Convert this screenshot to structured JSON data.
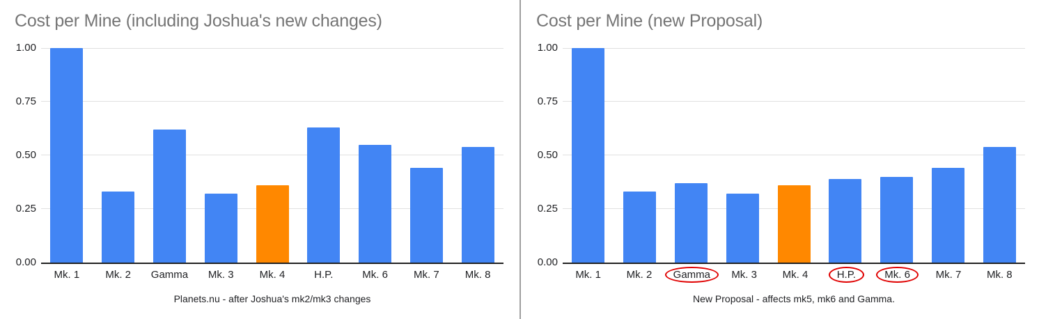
{
  "page": {
    "background": "#ffffff",
    "divider_color": "#9e9e9e"
  },
  "chart_data": [
    {
      "type": "bar",
      "title": "Cost per Mine (including Joshua's new changes)",
      "caption": "Planets.nu - after Joshua's mk2/mk3 changes",
      "categories": [
        "Mk. 1",
        "Mk. 2",
        "Gamma",
        "Mk. 3",
        "Mk. 4",
        "H.P.",
        "Mk. 6",
        "Mk. 7",
        "Mk. 8"
      ],
      "values": [
        1.0,
        0.33,
        0.62,
        0.32,
        0.36,
        0.63,
        0.55,
        0.44,
        0.54
      ],
      "highlighted_category": "Mk. 4",
      "circled_categories": [],
      "yticks": [
        "1.00",
        "0.75",
        "0.50",
        "0.25",
        "0.00"
      ],
      "ylim": [
        0,
        1
      ],
      "grid": true,
      "legend": "none",
      "xlabel": "",
      "ylabel": "",
      "colors": {
        "bar": "#4285f4",
        "highlight": "#ff8800",
        "title": "#757575",
        "axis_text": "#202124",
        "gridline": "#e0e0e0",
        "baseline": "#212121",
        "circle": "#e00000"
      }
    },
    {
      "type": "bar",
      "title": "Cost per Mine (new Proposal)",
      "caption": "New Proposal - affects mk5, mk6 and Gamma.",
      "categories": [
        "Mk. 1",
        "Mk. 2",
        "Gamma",
        "Mk. 3",
        "Mk. 4",
        "H.P.",
        "Mk. 6",
        "Mk. 7",
        "Mk. 8"
      ],
      "values": [
        1.0,
        0.33,
        0.37,
        0.32,
        0.36,
        0.39,
        0.4,
        0.44,
        0.54
      ],
      "highlighted_category": "Mk. 4",
      "circled_categories": [
        "Gamma",
        "H.P.",
        "Mk. 6"
      ],
      "yticks": [
        "1.00",
        "0.75",
        "0.50",
        "0.25",
        "0.00"
      ],
      "ylim": [
        0,
        1
      ],
      "grid": true,
      "legend": "none",
      "xlabel": "",
      "ylabel": "",
      "colors": {
        "bar": "#4285f4",
        "highlight": "#ff8800",
        "title": "#757575",
        "axis_text": "#202124",
        "gridline": "#e0e0e0",
        "baseline": "#212121",
        "circle": "#e00000"
      }
    }
  ]
}
